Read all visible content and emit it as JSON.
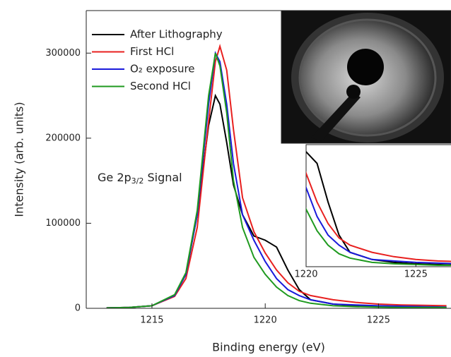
{
  "chart_data": {
    "type": "line",
    "x_label": "Binding energy (eV)",
    "y_label": "Intensity (arb. units)",
    "annotation": [
      "Ge 2p",
      "3/2",
      " Signal"
    ],
    "xlim": [
      1212.1,
      1228.2
    ],
    "ylim": [
      0,
      350000
    ],
    "xticks": [
      1215,
      1220,
      1225
    ],
    "yticks": [
      0,
      100000,
      200000,
      300000
    ],
    "x": [
      1213,
      1214,
      1215,
      1216,
      1216.5,
      1217,
      1217.5,
      1217.8,
      1218,
      1218.3,
      1218.6,
      1219,
      1219.5,
      1220,
      1220.5,
      1221,
      1221.5,
      1222,
      1223,
      1224,
      1225,
      1226,
      1227,
      1228
    ],
    "series": [
      {
        "name": "After Lithography",
        "color": "#000000",
        "values": [
          500,
          1000,
          3000,
          15000,
          40000,
          110000,
          215000,
          250000,
          240000,
          195000,
          145000,
          110000,
          85000,
          80000,
          72000,
          45000,
          22000,
          10000,
          5000,
          3000,
          2000,
          1500,
          1000,
          1000
        ]
      },
      {
        "name": "First HCl",
        "color": "#e8201f",
        "values": [
          500,
          1000,
          3000,
          14000,
          35000,
          95000,
          220000,
          290000,
          308000,
          280000,
          210000,
          130000,
          90000,
          65000,
          45000,
          30000,
          20000,
          15000,
          10000,
          7000,
          5000,
          4000,
          3500,
          3000
        ]
      },
      {
        "name": "O₂ exposure",
        "color": "#1a1adb",
        "values": [
          500,
          1000,
          3000,
          15000,
          40000,
          110000,
          240000,
          300000,
          290000,
          240000,
          170000,
          110000,
          80000,
          55000,
          35000,
          22000,
          15000,
          10000,
          5000,
          4000,
          3000,
          2500,
          2000,
          1500
        ]
      },
      {
        "name": "Second HCl",
        "color": "#1f9a1f",
        "values": [
          500,
          1000,
          3000,
          16000,
          42000,
          115000,
          250000,
          300000,
          285000,
          230000,
          150000,
          95000,
          60000,
          40000,
          25000,
          15000,
          9000,
          6000,
          3000,
          2000,
          1500,
          1000,
          1000,
          1000
        ]
      }
    ],
    "inset": {
      "xlim": [
        1220,
        1226.6
      ],
      "ylim": [
        0,
        85000
      ],
      "xticks": [
        1220,
        1225
      ]
    }
  }
}
